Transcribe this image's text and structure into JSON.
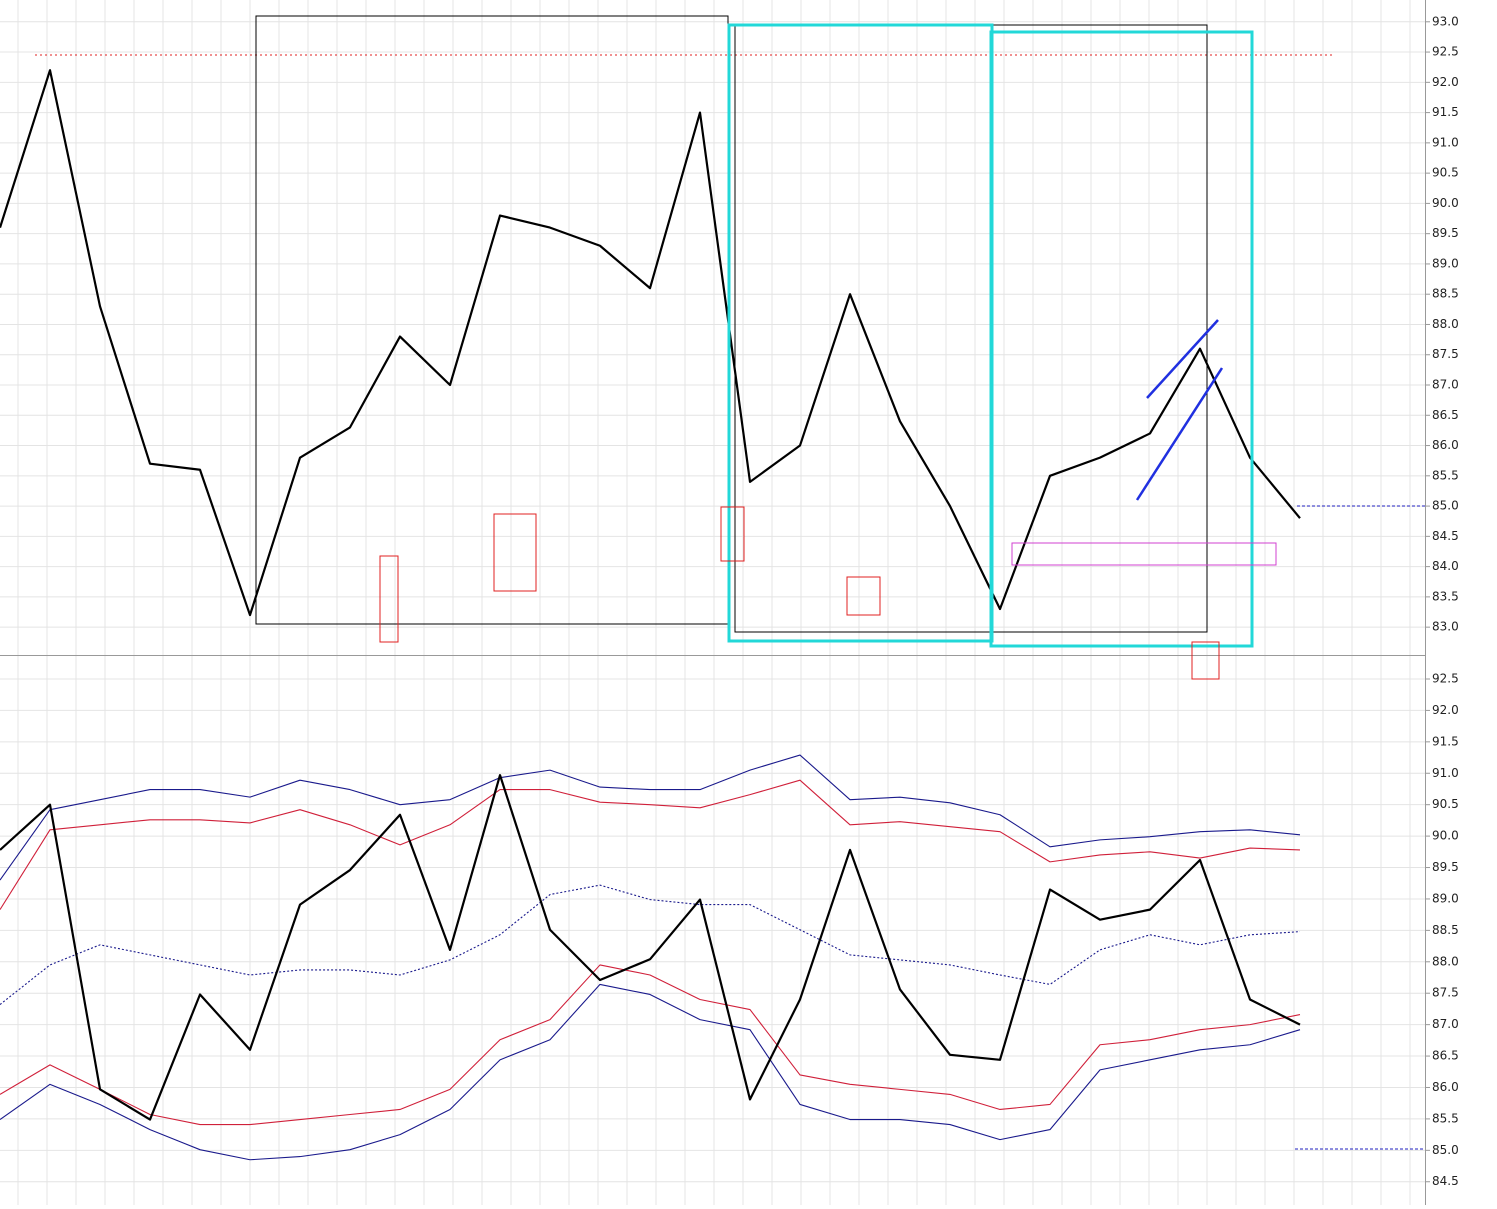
{
  "chart_data": [
    {
      "type": "line",
      "grid": true,
      "categories": [
        null,
        null,
        null,
        null,
        null,
        null,
        null,
        null,
        null,
        null,
        null,
        null,
        null,
        null,
        null,
        null,
        null,
        null,
        null,
        null,
        null,
        null,
        null,
        null,
        null,
        null,
        null
      ],
      "ylim": [
        82.54,
        93.36
      ],
      "yticks": [
        {
          "value": 83,
          "label": "83.0"
        },
        83.5,
        {
          "value": 84,
          "label": "84.0"
        },
        84.5,
        {
          "value": 85,
          "label": "85.0"
        },
        85.5,
        {
          "value": 86,
          "label": "86.0"
        },
        86.5,
        {
          "value": 87,
          "label": "87.0"
        },
        87.5,
        {
          "value": 88,
          "label": "88.0"
        },
        88.5,
        {
          "value": 89,
          "label": "89.0"
        },
        89.5,
        {
          "value": 90,
          "label": "90.0"
        },
        90.5,
        {
          "value": 91,
          "label": "91.0"
        },
        91.5,
        {
          "value": 92,
          "label": "92.0"
        },
        92.5,
        {
          "value": 93,
          "label": "93.0"
        }
      ],
      "series": [
        {
          "color": "#000000",
          "values": [
            89.6,
            92.2,
            88.3,
            85.7,
            85.6,
            83.2,
            85.8,
            86.3,
            87.8,
            87.0,
            89.8,
            89.6,
            89.3,
            88.6,
            91.5,
            85.4,
            86.0,
            88.5,
            86.4,
            85.0,
            83.3,
            85.5,
            85.8,
            86.2,
            87.6,
            85.8,
            84.8
          ]
        }
      ]
    },
    {
      "type": "line",
      "grid": true,
      "categories": [
        null,
        null,
        null,
        null,
        null,
        null,
        null,
        null,
        null,
        null,
        null,
        null,
        null,
        null,
        null,
        null,
        null,
        null,
        null,
        null,
        null,
        null,
        null,
        null,
        null,
        null,
        null
      ],
      "ylim": [
        84.13,
        92.85
      ],
      "yticks": [
        84.5,
        {
          "value": 85,
          "label": "85.0"
        },
        85.5,
        {
          "value": 86,
          "label": "86.0"
        },
        86.5,
        {
          "value": 87,
          "label": "87.0"
        },
        87.5,
        {
          "value": 88,
          "label": "88.0"
        },
        88.5,
        {
          "value": 89,
          "label": "89.0"
        },
        89.5,
        {
          "value": 90,
          "label": "90.0"
        },
        90.5,
        {
          "value": 91,
          "label": "91.0"
        },
        91.5,
        {
          "value": 92,
          "label": "92.0"
        },
        92.5
      ],
      "series": [
        {
          "color": "#1a1a8c",
          "values": [
            89.3,
            90.42,
            90.58,
            90.74,
            90.74,
            90.62,
            90.89,
            90.74,
            90.5,
            90.58,
            90.93,
            91.05,
            90.78,
            90.74,
            90.74,
            91.05,
            91.29,
            90.58,
            90.62,
            90.53,
            90.34,
            89.83,
            89.94,
            89.99,
            90.07,
            90.1,
            90.02
          ]
        },
        {
          "color": "#d0203a",
          "values": [
            88.83,
            90.1,
            90.18,
            90.26,
            90.26,
            90.21,
            90.42,
            90.18,
            89.86,
            90.18,
            90.74,
            90.74,
            90.54,
            90.5,
            90.45,
            90.66,
            90.89,
            90.18,
            90.23,
            90.15,
            90.07,
            89.59,
            89.7,
            89.75,
            89.65,
            89.81,
            89.78
          ]
        },
        {
          "color": "#1a1a8c",
          "dashed": true,
          "values": [
            87.32,
            87.95,
            88.27,
            88.11,
            87.95,
            87.79,
            87.87,
            87.87,
            87.79,
            88.03,
            88.43,
            89.07,
            89.22,
            88.99,
            88.91,
            88.91,
            88.51,
            88.11,
            88.03,
            87.95,
            87.79,
            87.64,
            88.19,
            88.43,
            88.27,
            88.43,
            88.48
          ]
        },
        {
          "color": "#d0203a",
          "values": [
            85.89,
            86.36,
            85.97,
            85.57,
            85.41,
            85.41,
            85.49,
            85.57,
            85.65,
            85.97,
            86.76,
            87.08,
            87.95,
            87.79,
            87.4,
            87.24,
            86.2,
            86.05,
            85.97,
            85.89,
            85.65,
            85.73,
            86.68,
            86.76,
            86.92,
            87.0,
            87.16
          ]
        },
        {
          "color": "#1a1a8c",
          "values": [
            85.49,
            86.05,
            85.73,
            85.33,
            85.01,
            84.85,
            84.9,
            85.01,
            85.25,
            85.65,
            86.44,
            86.76,
            87.64,
            87.48,
            87.08,
            86.92,
            85.73,
            85.49,
            85.49,
            85.41,
            85.17,
            85.33,
            86.28,
            86.44,
            86.6,
            86.68,
            86.92
          ]
        },
        {
          "color": "#000000",
          "values": [
            89.78,
            90.5,
            85.97,
            85.49,
            87.48,
            86.6,
            88.91,
            89.46,
            90.34,
            88.19,
            90.97,
            88.51,
            87.71,
            88.04,
            88.99,
            85.81,
            87.4,
            89.78,
            87.56,
            86.52,
            86.44,
            89.15,
            88.67,
            88.83,
            89.62,
            87.4,
            87.0
          ]
        }
      ]
    }
  ]
}
